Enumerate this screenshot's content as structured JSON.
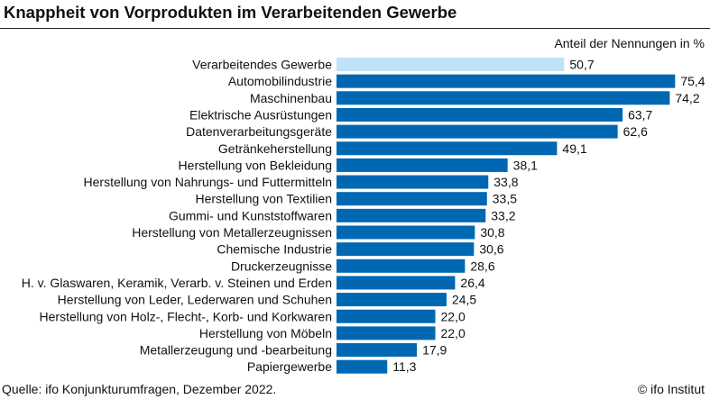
{
  "chart_data": {
    "type": "bar",
    "orientation": "horizontal",
    "title": "Knappheit von Vorprodukten im Verarbeitenden Gewerbe",
    "unit_label": "Anteil der Nennungen in %",
    "categories": [
      "Verarbeitendes Gewerbe",
      "Automobilindustrie",
      "Maschinenbau",
      "Elektrische Ausrüstungen",
      "Datenverarbeitungsgeräte",
      "Getränkeherstellung",
      "Herstellung von Bekleidung",
      "Herstellung von Nahrungs- und Futtermitteln",
      "Herstellung von Textilien",
      "Gummi- und Kunststoffwaren",
      "Herstellung von Metallerzeugnissen",
      "Chemische Industrie",
      "Druckerzeugnisse",
      "H. v. Glaswaren, Keramik, Verarb. v. Steinen und Erden",
      "Herstellung von Leder, Lederwaren und Schuhen",
      "Herstellung von Holz-, Flecht-, Korb- und Korkwaren",
      "Herstellung von Möbeln",
      "Metallerzeugung und -bearbeitung",
      "Papiergewerbe"
    ],
    "values": [
      50.7,
      75.4,
      74.2,
      63.7,
      62.6,
      49.1,
      38.1,
      33.8,
      33.5,
      33.2,
      30.8,
      30.6,
      28.6,
      26.4,
      24.5,
      22.0,
      22.0,
      17.9,
      11.3
    ],
    "value_labels": [
      "50,7",
      "75,4",
      "74,2",
      "63,7",
      "62,6",
      "49,1",
      "38,1",
      "33,8",
      "33,5",
      "33,2",
      "30,8",
      "30,6",
      "28,6",
      "26,4",
      "24,5",
      "22,0",
      "22,0",
      "17,9",
      "11,3"
    ],
    "highlight_index": 0,
    "colors": {
      "bar": "#0067b3",
      "highlight": "#bfe2f6"
    },
    "xlim": [
      0,
      80
    ],
    "grid": false,
    "legend": "none"
  },
  "footer": {
    "source": "Quelle: ifo Konjunkturumfragen, Dezember 2022.",
    "credit": "© ifo Institut"
  }
}
